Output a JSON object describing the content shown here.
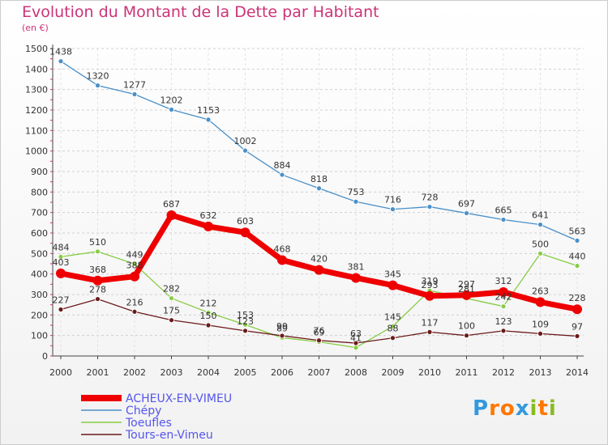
{
  "chart_data": {
    "type": "line",
    "title": "Evolution du Montant de la Dette par Habitant",
    "subtitle": "(en €)",
    "ylim": [
      0,
      1500
    ],
    "yticks": [
      0,
      100,
      200,
      300,
      400,
      500,
      600,
      700,
      800,
      900,
      1000,
      1100,
      1200,
      1300,
      1400,
      1500
    ],
    "x": [
      "2000",
      "2001",
      "2002",
      "2003",
      "2004",
      "2005",
      "2006",
      "2007",
      "2008",
      "2009",
      "2010",
      "2011",
      "2012",
      "2013",
      "2014"
    ],
    "legend_position": "bottom-left",
    "series": [
      {
        "name": "Chépy",
        "color": "#4a90c8",
        "width": 1.3,
        "point_r": 3,
        "values": [
          1438,
          1320,
          1277,
          1202,
          1153,
          1002,
          884,
          818,
          753,
          716,
          728,
          697,
          665,
          641,
          563
        ]
      },
      {
        "name": "Toeufles",
        "color": "#88cc44",
        "width": 1.3,
        "point_r": 3,
        "values": [
          484,
          510,
          449,
          282,
          212,
          153,
          89,
          69,
          41,
          145,
          319,
          281,
          242,
          500,
          440
        ]
      },
      {
        "name": "Tours-en-Vimeu",
        "color": "#6b1a1a",
        "width": 1.3,
        "point_r": 3,
        "values": [
          227,
          278,
          216,
          175,
          150,
          123,
          99,
          76,
          63,
          88,
          117,
          100,
          123,
          109,
          97
        ]
      },
      {
        "name": "ACHEUX-EN-VIMEU",
        "color": "#ee0000",
        "width": 7,
        "point_r": 6,
        "values": [
          403,
          368,
          388,
          687,
          632,
          603,
          468,
          420,
          381,
          345,
          293,
          297,
          312,
          263,
          228
        ]
      }
    ],
    "data_labels": {
      "Chépy": [
        "1438",
        "1320",
        "1277",
        "1202",
        "1153",
        "1002",
        "884",
        "818",
        "753",
        "716",
        "728",
        "697",
        "665",
        "641",
        "563"
      ],
      "Toeufles": [
        "484",
        "510",
        "449",
        "282",
        "212",
        "153",
        "89",
        "69",
        "41",
        "145",
        "319",
        "281",
        "242",
        "500",
        "440"
      ],
      "Tours-en-Vimeu": [
        "227",
        "278",
        "216",
        "175",
        "150",
        "123",
        "99",
        "76",
        "63",
        "88",
        "117",
        "100",
        "123",
        "109",
        "97"
      ],
      "ACHEUX-EN-VIMEU": [
        "403",
        "368",
        "388",
        "687",
        "632",
        "603",
        "468",
        "420",
        "381",
        "345",
        "293",
        "297",
        "312",
        "263",
        "228"
      ]
    }
  },
  "legend": [
    {
      "label": "ACHEUX-EN-VIMEU",
      "color": "#ee0000",
      "thick": true
    },
    {
      "label": "Chépy",
      "color": "#4a90c8",
      "thick": false
    },
    {
      "label": "Toeufles",
      "color": "#88cc44",
      "thick": false
    },
    {
      "label": "Tours-en-Vimeu",
      "color": "#6b1a1a",
      "thick": false
    }
  ],
  "logo": {
    "text": "Proxiti",
    "letters": [
      "P",
      "r",
      "o",
      "x",
      "i",
      "t",
      "i"
    ],
    "colors": [
      "#3399dd",
      "#ff7700",
      "#ff7700",
      "#3399dd",
      "#88bb22",
      "#ff7700",
      "#88bb22"
    ]
  }
}
